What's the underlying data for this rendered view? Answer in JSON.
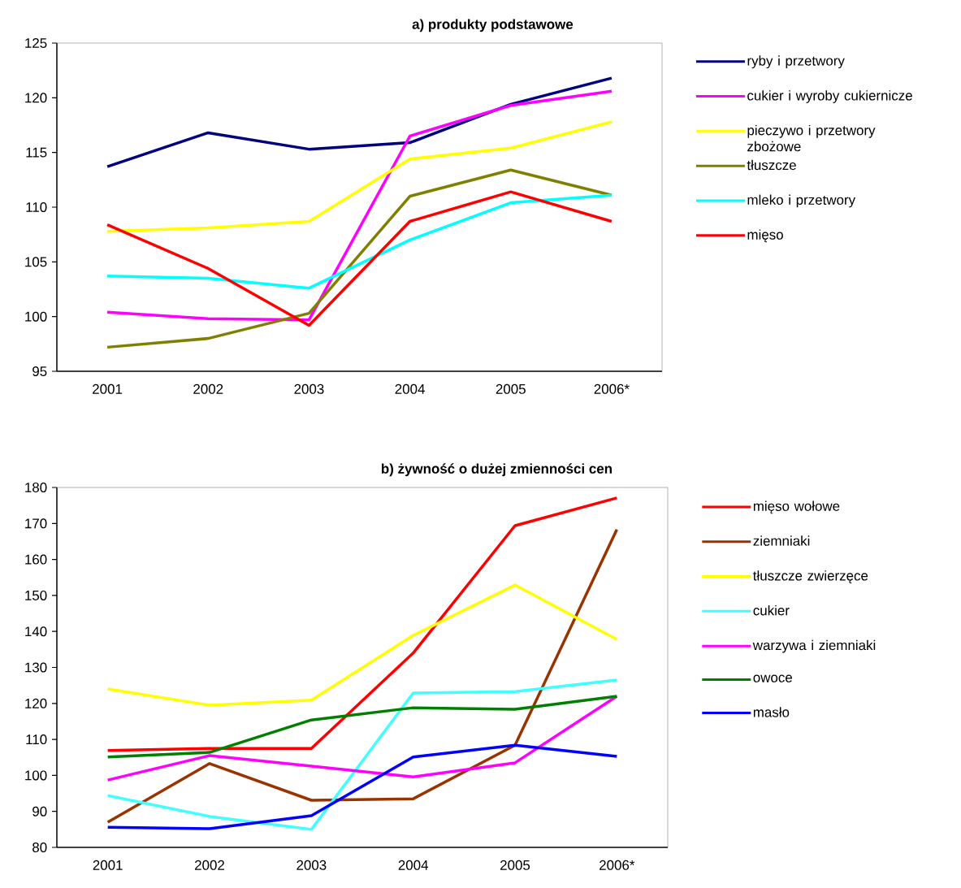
{
  "chart_data": [
    {
      "type": "line",
      "title": "a) produkty podstawowe",
      "categories": [
        "2001",
        "2002",
        "2003",
        "2004",
        "2005",
        "2006*"
      ],
      "ylim": [
        95,
        125
      ],
      "yticks": [
        95,
        100,
        105,
        110,
        115,
        120,
        125
      ],
      "legend": "right",
      "series": [
        {
          "name": "ryby i przetwory",
          "color": "#000080",
          "values": [
            113.7,
            116.8,
            115.3,
            115.9,
            119.4,
            121.8
          ]
        },
        {
          "name": "cukier i wyroby cukiernicze",
          "color": "#ff00ff",
          "values": [
            100.4,
            99.8,
            99.7,
            116.5,
            119.3,
            120.6
          ]
        },
        {
          "name": "pieczywo i przetwory zbożowe",
          "color": "#ffff00",
          "values": [
            107.8,
            108.1,
            108.7,
            114.4,
            115.4,
            117.8
          ]
        },
        {
          "name": "tłuszcze",
          "color": "#808000",
          "values": [
            97.2,
            98.0,
            100.3,
            111.0,
            113.4,
            111.1
          ]
        },
        {
          "name": "mleko i przetwory",
          "color": "#00ffff",
          "values": [
            103.7,
            103.5,
            102.6,
            107.0,
            110.4,
            111.1
          ]
        },
        {
          "name": "mięso",
          "color": "#ff0000",
          "values": [
            108.4,
            104.4,
            99.2,
            108.7,
            111.4,
            108.7
          ]
        }
      ]
    },
    {
      "type": "line",
      "title": "b) żywność o dużej zmienności cen",
      "categories": [
        "2001",
        "2002",
        "2003",
        "2004",
        "2005",
        "2006*"
      ],
      "ylim": [
        80,
        180
      ],
      "yticks": [
        80,
        90,
        100,
        110,
        120,
        130,
        140,
        150,
        160,
        170,
        180
      ],
      "legend": "right",
      "series": [
        {
          "name": "mięso wołowe",
          "color": "#ff0000",
          "values": [
            106.9,
            107.5,
            107.5,
            134.0,
            169.4,
            177.1
          ]
        },
        {
          "name": "ziemniaki",
          "color": "#993300",
          "values": [
            87.0,
            103.3,
            93.1,
            93.5,
            108.4,
            168.3
          ]
        },
        {
          "name": "tłuszcze zwierzęce",
          "color": "#ffff00",
          "values": [
            124.0,
            119.5,
            120.9,
            138.9,
            152.9,
            137.8
          ]
        },
        {
          "name": "cukier",
          "color": "#40ffff",
          "values": [
            94.4,
            88.6,
            85.0,
            122.9,
            123.3,
            126.5
          ]
        },
        {
          "name": "warzywa i ziemniaki",
          "color": "#ff00ff",
          "values": [
            98.7,
            105.5,
            102.6,
            99.6,
            103.5,
            122.0
          ]
        },
        {
          "name": "owoce",
          "color": "#008000",
          "values": [
            105.1,
            106.4,
            115.4,
            118.8,
            118.4,
            122.0
          ]
        },
        {
          "name": "masło",
          "color": "#0000ff",
          "values": [
            85.6,
            85.2,
            88.8,
            105.1,
            108.4,
            105.3
          ]
        }
      ]
    }
  ]
}
